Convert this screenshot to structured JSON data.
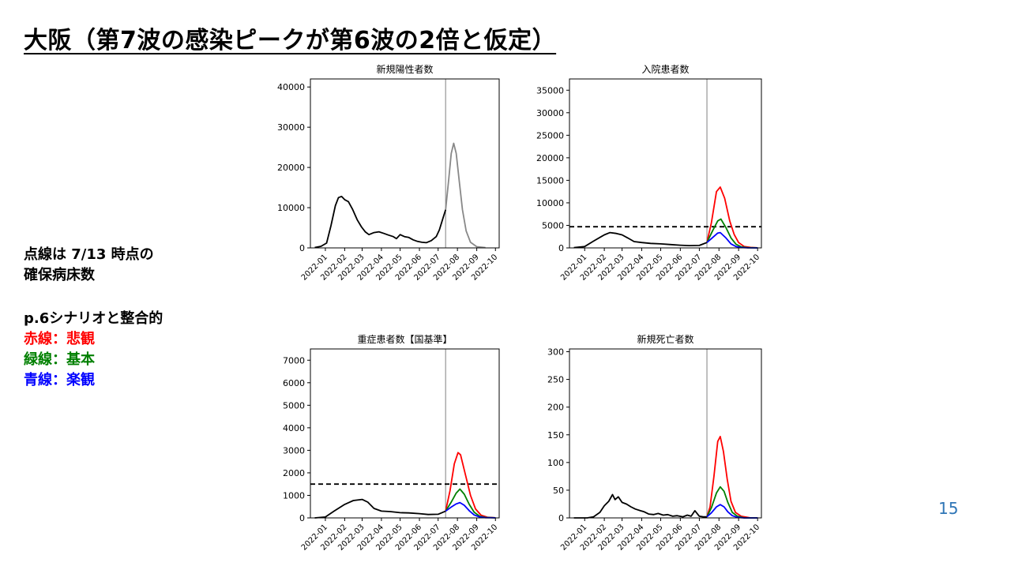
{
  "title": "大阪（第7波の感染ピークが第6波の2倍と仮定）",
  "notes": {
    "beds_line1": "点線は 7/13 時点の",
    "beds_line2": "確保病床数",
    "scenario_header": "p.6シナリオと整合的",
    "red_label": "赤線：悲観",
    "green_label": "緑線：基本",
    "blue_label": "青線：楽観"
  },
  "colors": {
    "pessimistic": "#ff0000",
    "base": "#008000",
    "optimistic": "#0000ff",
    "actual": "#000000",
    "projection": "#888888",
    "page_number": "#2e75b6"
  },
  "page_number": "15",
  "chart_data": [
    {
      "type": "line",
      "title": "新規陽性者数",
      "x_ticks": [
        "2022-01",
        "2022-02",
        "2022-03",
        "2022-04",
        "2022-05",
        "2022-06",
        "2022-07",
        "2022-08",
        "2022-09",
        "2022-10"
      ],
      "y_ticks": [
        0,
        10000,
        20000,
        30000,
        40000
      ],
      "ylim": [
        0,
        42000
      ],
      "vline": "2022-07-13",
      "series": [
        {
          "role": "actual",
          "points": [
            [
              "2021-12-15",
              100
            ],
            [
              "2021-12-25",
              400
            ],
            [
              "2022-01-03",
              1200
            ],
            [
              "2022-01-10",
              5500
            ],
            [
              "2022-01-17",
              10500
            ],
            [
              "2022-01-22",
              12500
            ],
            [
              "2022-01-27",
              12800
            ],
            [
              "2022-02-01",
              12000
            ],
            [
              "2022-02-07",
              11500
            ],
            [
              "2022-02-14",
              9500
            ],
            [
              "2022-02-21",
              7000
            ],
            [
              "2022-02-28",
              5200
            ],
            [
              "2022-03-06",
              4000
            ],
            [
              "2022-03-12",
              3300
            ],
            [
              "2022-03-20",
              3800
            ],
            [
              "2022-03-28",
              4000
            ],
            [
              "2022-04-05",
              3600
            ],
            [
              "2022-04-12",
              3200
            ],
            [
              "2022-04-20",
              2800
            ],
            [
              "2022-04-25",
              2300
            ],
            [
              "2022-05-01",
              3300
            ],
            [
              "2022-05-08",
              2800
            ],
            [
              "2022-05-15",
              2600
            ],
            [
              "2022-05-22",
              2000
            ],
            [
              "2022-05-29",
              1600
            ],
            [
              "2022-06-05",
              1400
            ],
            [
              "2022-06-12",
              1300
            ],
            [
              "2022-06-20",
              1800
            ],
            [
              "2022-06-28",
              2800
            ],
            [
              "2022-07-03",
              4500
            ],
            [
              "2022-07-09",
              7500
            ],
            [
              "2022-07-13",
              9500
            ]
          ]
        },
        {
          "role": "projection",
          "points": [
            [
              "2022-07-13",
              9500
            ],
            [
              "2022-07-18",
              17000
            ],
            [
              "2022-07-22",
              23500
            ],
            [
              "2022-07-26",
              26000
            ],
            [
              "2022-07-30",
              23500
            ],
            [
              "2022-08-04",
              16500
            ],
            [
              "2022-08-09",
              9500
            ],
            [
              "2022-08-15",
              4200
            ],
            [
              "2022-08-22",
              1400
            ],
            [
              "2022-09-01",
              300
            ],
            [
              "2022-09-15",
              50
            ]
          ]
        }
      ]
    },
    {
      "type": "line",
      "title": "入院患者数",
      "x_ticks": [
        "2022-01",
        "2022-02",
        "2022-03",
        "2022-04",
        "2022-05",
        "2022-06",
        "2022-07",
        "2022-08",
        "2022-09",
        "2022-10"
      ],
      "y_ticks": [
        0,
        5000,
        10000,
        15000,
        20000,
        25000,
        30000,
        35000
      ],
      "ylim": [
        0,
        37500
      ],
      "vline": "2022-07-13",
      "hline": 4700,
      "series": [
        {
          "role": "actual",
          "points": [
            [
              "2021-12-15",
              50
            ],
            [
              "2022-01-01",
              300
            ],
            [
              "2022-01-15",
              1500
            ],
            [
              "2022-02-01",
              2900
            ],
            [
              "2022-02-10",
              3400
            ],
            [
              "2022-02-20",
              3200
            ],
            [
              "2022-03-01",
              2900
            ],
            [
              "2022-03-10",
              2200
            ],
            [
              "2022-03-20",
              1400
            ],
            [
              "2022-04-01",
              1200
            ],
            [
              "2022-04-15",
              1000
            ],
            [
              "2022-05-01",
              900
            ],
            [
              "2022-05-15",
              750
            ],
            [
              "2022-06-01",
              600
            ],
            [
              "2022-06-15",
              500
            ],
            [
              "2022-07-01",
              550
            ],
            [
              "2022-07-13",
              1200
            ]
          ]
        },
        {
          "role": "pessimistic",
          "points": [
            [
              "2022-07-13",
              1200
            ],
            [
              "2022-07-20",
              5500
            ],
            [
              "2022-07-28",
              12500
            ],
            [
              "2022-08-03",
              13500
            ],
            [
              "2022-08-10",
              11000
            ],
            [
              "2022-08-18",
              6000
            ],
            [
              "2022-08-25",
              3000
            ],
            [
              "2022-09-01",
              1200
            ],
            [
              "2022-09-10",
              300
            ],
            [
              "2022-09-20",
              100
            ],
            [
              "2022-10-01",
              20
            ]
          ]
        },
        {
          "role": "base",
          "points": [
            [
              "2022-07-13",
              1200
            ],
            [
              "2022-07-22",
              3800
            ],
            [
              "2022-07-30",
              6000
            ],
            [
              "2022-08-04",
              6400
            ],
            [
              "2022-08-12",
              4500
            ],
            [
              "2022-08-20",
              2200
            ],
            [
              "2022-08-28",
              800
            ],
            [
              "2022-09-05",
              250
            ],
            [
              "2022-09-15",
              60
            ],
            [
              "2022-10-01",
              10
            ]
          ]
        },
        {
          "role": "optimistic",
          "points": [
            [
              "2022-07-13",
              1200
            ],
            [
              "2022-07-22",
              2300
            ],
            [
              "2022-07-30",
              3300
            ],
            [
              "2022-08-03",
              3400
            ],
            [
              "2022-08-12",
              2200
            ],
            [
              "2022-08-20",
              900
            ],
            [
              "2022-08-28",
              300
            ],
            [
              "2022-09-05",
              80
            ],
            [
              "2022-09-15",
              20
            ],
            [
              "2022-10-01",
              5
            ]
          ]
        }
      ]
    },
    {
      "type": "line",
      "title": "重症患者数【国基準】",
      "x_ticks": [
        "2022-01",
        "2022-02",
        "2022-03",
        "2022-04",
        "2022-05",
        "2022-06",
        "2022-07",
        "2022-08",
        "2022-09",
        "2022-10"
      ],
      "y_ticks": [
        0,
        1000,
        2000,
        3000,
        4000,
        5000,
        6000,
        7000
      ],
      "ylim": [
        0,
        7500
      ],
      "vline": "2022-07-13",
      "hline": 1500,
      "series": [
        {
          "role": "actual",
          "points": [
            [
              "2021-12-15",
              0
            ],
            [
              "2022-01-01",
              40
            ],
            [
              "2022-01-15",
              300
            ],
            [
              "2022-02-01",
              600
            ],
            [
              "2022-02-15",
              770
            ],
            [
              "2022-03-01",
              820
            ],
            [
              "2022-03-10",
              700
            ],
            [
              "2022-03-20",
              420
            ],
            [
              "2022-04-01",
              300
            ],
            [
              "2022-04-15",
              280
            ],
            [
              "2022-05-01",
              230
            ],
            [
              "2022-05-15",
              220
            ],
            [
              "2022-06-01",
              190
            ],
            [
              "2022-06-15",
              150
            ],
            [
              "2022-07-01",
              160
            ],
            [
              "2022-07-13",
              300
            ]
          ]
        },
        {
          "role": "pessimistic",
          "points": [
            [
              "2022-07-13",
              300
            ],
            [
              "2022-07-20",
              1200
            ],
            [
              "2022-07-27",
              2400
            ],
            [
              "2022-08-02",
              2900
            ],
            [
              "2022-08-06",
              2800
            ],
            [
              "2022-08-14",
              1900
            ],
            [
              "2022-08-22",
              1000
            ],
            [
              "2022-08-30",
              400
            ],
            [
              "2022-09-08",
              120
            ],
            [
              "2022-09-18",
              30
            ],
            [
              "2022-10-01",
              5
            ]
          ]
        },
        {
          "role": "base",
          "points": [
            [
              "2022-07-13",
              300
            ],
            [
              "2022-07-22",
              700
            ],
            [
              "2022-07-30",
              1100
            ],
            [
              "2022-08-05",
              1280
            ],
            [
              "2022-08-12",
              1050
            ],
            [
              "2022-08-20",
              600
            ],
            [
              "2022-08-28",
              250
            ],
            [
              "2022-09-06",
              70
            ],
            [
              "2022-09-15",
              20
            ],
            [
              "2022-10-01",
              3
            ]
          ]
        },
        {
          "role": "optimistic",
          "points": [
            [
              "2022-07-13",
              300
            ],
            [
              "2022-07-22",
              480
            ],
            [
              "2022-07-30",
              620
            ],
            [
              "2022-08-05",
              680
            ],
            [
              "2022-08-12",
              560
            ],
            [
              "2022-08-20",
              320
            ],
            [
              "2022-08-28",
              130
            ],
            [
              "2022-09-06",
              40
            ],
            [
              "2022-09-15",
              10
            ],
            [
              "2022-10-01",
              2
            ]
          ]
        }
      ]
    },
    {
      "type": "line",
      "title": "新規死亡者数",
      "x_ticks": [
        "2022-01",
        "2022-02",
        "2022-03",
        "2022-04",
        "2022-05",
        "2022-06",
        "2022-07",
        "2022-08",
        "2022-09",
        "2022-10"
      ],
      "y_ticks": [
        0,
        50,
        100,
        150,
        200,
        250,
        300
      ],
      "ylim": [
        0,
        305
      ],
      "vline": "2022-07-13",
      "series": [
        {
          "role": "actual",
          "points": [
            [
              "2021-12-15",
              0
            ],
            [
              "2022-01-05",
              0
            ],
            [
              "2022-01-15",
              2
            ],
            [
              "2022-01-25",
              10
            ],
            [
              "2022-02-01",
              22
            ],
            [
              "2022-02-08",
              30
            ],
            [
              "2022-02-14",
              42
            ],
            [
              "2022-02-18",
              33
            ],
            [
              "2022-02-23",
              38
            ],
            [
              "2022-03-01",
              28
            ],
            [
              "2022-03-08",
              25
            ],
            [
              "2022-03-15",
              20
            ],
            [
              "2022-03-22",
              16
            ],
            [
              "2022-03-30",
              13
            ],
            [
              "2022-04-05",
              11
            ],
            [
              "2022-04-12",
              7
            ],
            [
              "2022-04-20",
              6
            ],
            [
              "2022-04-27",
              8
            ],
            [
              "2022-05-05",
              5
            ],
            [
              "2022-05-12",
              6
            ],
            [
              "2022-05-20",
              3
            ],
            [
              "2022-05-27",
              4
            ],
            [
              "2022-06-05",
              2
            ],
            [
              "2022-06-12",
              5
            ],
            [
              "2022-06-18",
              3
            ],
            [
              "2022-06-24",
              13
            ],
            [
              "2022-07-01",
              3
            ],
            [
              "2022-07-07",
              2
            ],
            [
              "2022-07-13",
              2
            ]
          ]
        },
        {
          "role": "pessimistic",
          "points": [
            [
              "2022-07-13",
              2
            ],
            [
              "2022-07-18",
              20
            ],
            [
              "2022-07-24",
              75
            ],
            [
              "2022-07-30",
              138
            ],
            [
              "2022-08-03",
              147
            ],
            [
              "2022-08-08",
              120
            ],
            [
              "2022-08-14",
              70
            ],
            [
              "2022-08-20",
              30
            ],
            [
              "2022-08-27",
              10
            ],
            [
              "2022-09-05",
              3
            ],
            [
              "2022-09-20",
              0
            ],
            [
              "2022-10-01",
              0
            ]
          ]
        },
        {
          "role": "base",
          "points": [
            [
              "2022-07-13",
              2
            ],
            [
              "2022-07-20",
              18
            ],
            [
              "2022-07-28",
              45
            ],
            [
              "2022-08-03",
              56
            ],
            [
              "2022-08-09",
              48
            ],
            [
              "2022-08-15",
              28
            ],
            [
              "2022-08-22",
              10
            ],
            [
              "2022-08-30",
              3
            ],
            [
              "2022-09-10",
              0
            ],
            [
              "2022-10-01",
              0
            ]
          ]
        },
        {
          "role": "optimistic",
          "points": [
            [
              "2022-07-13",
              2
            ],
            [
              "2022-07-20",
              9
            ],
            [
              "2022-07-28",
              20
            ],
            [
              "2022-08-03",
              24
            ],
            [
              "2022-08-09",
              20
            ],
            [
              "2022-08-15",
              11
            ],
            [
              "2022-08-22",
              4
            ],
            [
              "2022-08-30",
              1
            ],
            [
              "2022-09-10",
              0
            ],
            [
              "2022-10-01",
              0
            ]
          ]
        }
      ]
    }
  ]
}
